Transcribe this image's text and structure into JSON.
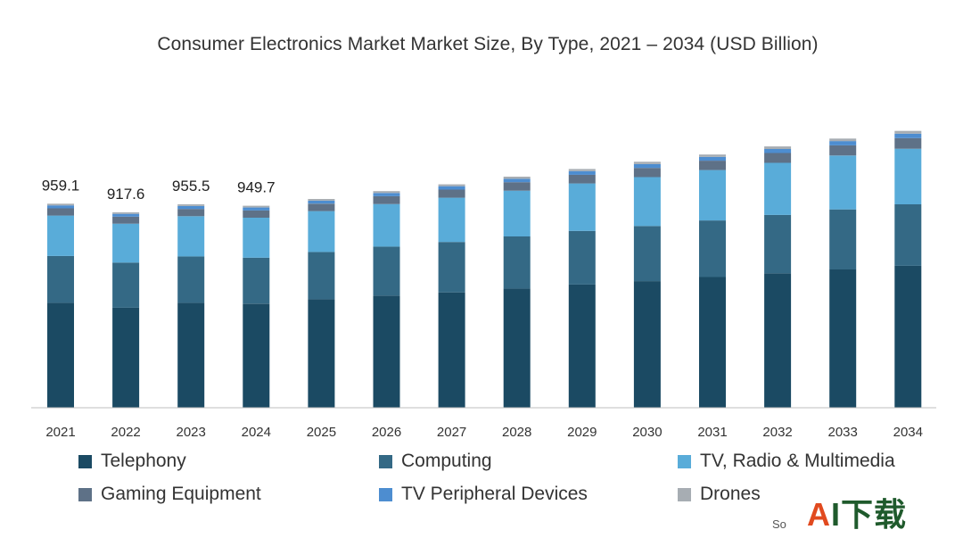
{
  "chart_data": {
    "type": "bar",
    "stacked": true,
    "title": "Consumer Electronics Market Market Size, By Type, 2021 – 2034 (USD Billion)",
    "categories": [
      "2021",
      "2022",
      "2023",
      "2024",
      "2025",
      "2026",
      "2027",
      "2028",
      "2029",
      "2030",
      "2031",
      "2032",
      "2033",
      "2034"
    ],
    "series": [
      {
        "name": "Telephony",
        "color": "#1b4a63",
        "values": [
          493,
          470,
          493,
          489,
          510,
          527,
          542,
          560,
          579,
          595,
          614,
          632,
          650,
          667
        ]
      },
      {
        "name": "Computing",
        "color": "#346985",
        "values": [
          220,
          212,
          218,
          216,
          222,
          230,
          237,
          245,
          252,
          259,
          266,
          274,
          282,
          289
        ]
      },
      {
        "name": "TV, Radio & Multimedia",
        "color": "#59acd9",
        "values": [
          190,
          183,
          189,
          188,
          192,
          200,
          208,
          215,
          223,
          230,
          237,
          245,
          253,
          261
        ]
      },
      {
        "name": "Gaming Equipment",
        "color": "#5e7187",
        "values": [
          34,
          33,
          34,
          34,
          35,
          37,
          38,
          40,
          41,
          43,
          44,
          46,
          48,
          50
        ]
      },
      {
        "name": "TV Peripheral Devices",
        "color": "#4d8dd0",
        "values": [
          14,
          13,
          14,
          14,
          14,
          15,
          16,
          16,
          17,
          18,
          18,
          19,
          20,
          21
        ]
      },
      {
        "name": "Drones",
        "color": "#a7adb3",
        "values": [
          8,
          7,
          8,
          8,
          8,
          9,
          9,
          10,
          10,
          11,
          11,
          12,
          12,
          13
        ]
      }
    ],
    "data_labels": [
      {
        "category": "2021",
        "label": "959.1"
      },
      {
        "category": "2022",
        "label": "917.6"
      },
      {
        "category": "2023",
        "label": "955.5"
      },
      {
        "category": "2024",
        "label": "949.7"
      }
    ],
    "xlabel": "",
    "ylabel": "",
    "ylim": [
      0,
      1350
    ],
    "grid": false,
    "legend_position": "bottom"
  },
  "source_text": "So",
  "watermark": {
    "accent": "A",
    "rest": "I下载"
  }
}
